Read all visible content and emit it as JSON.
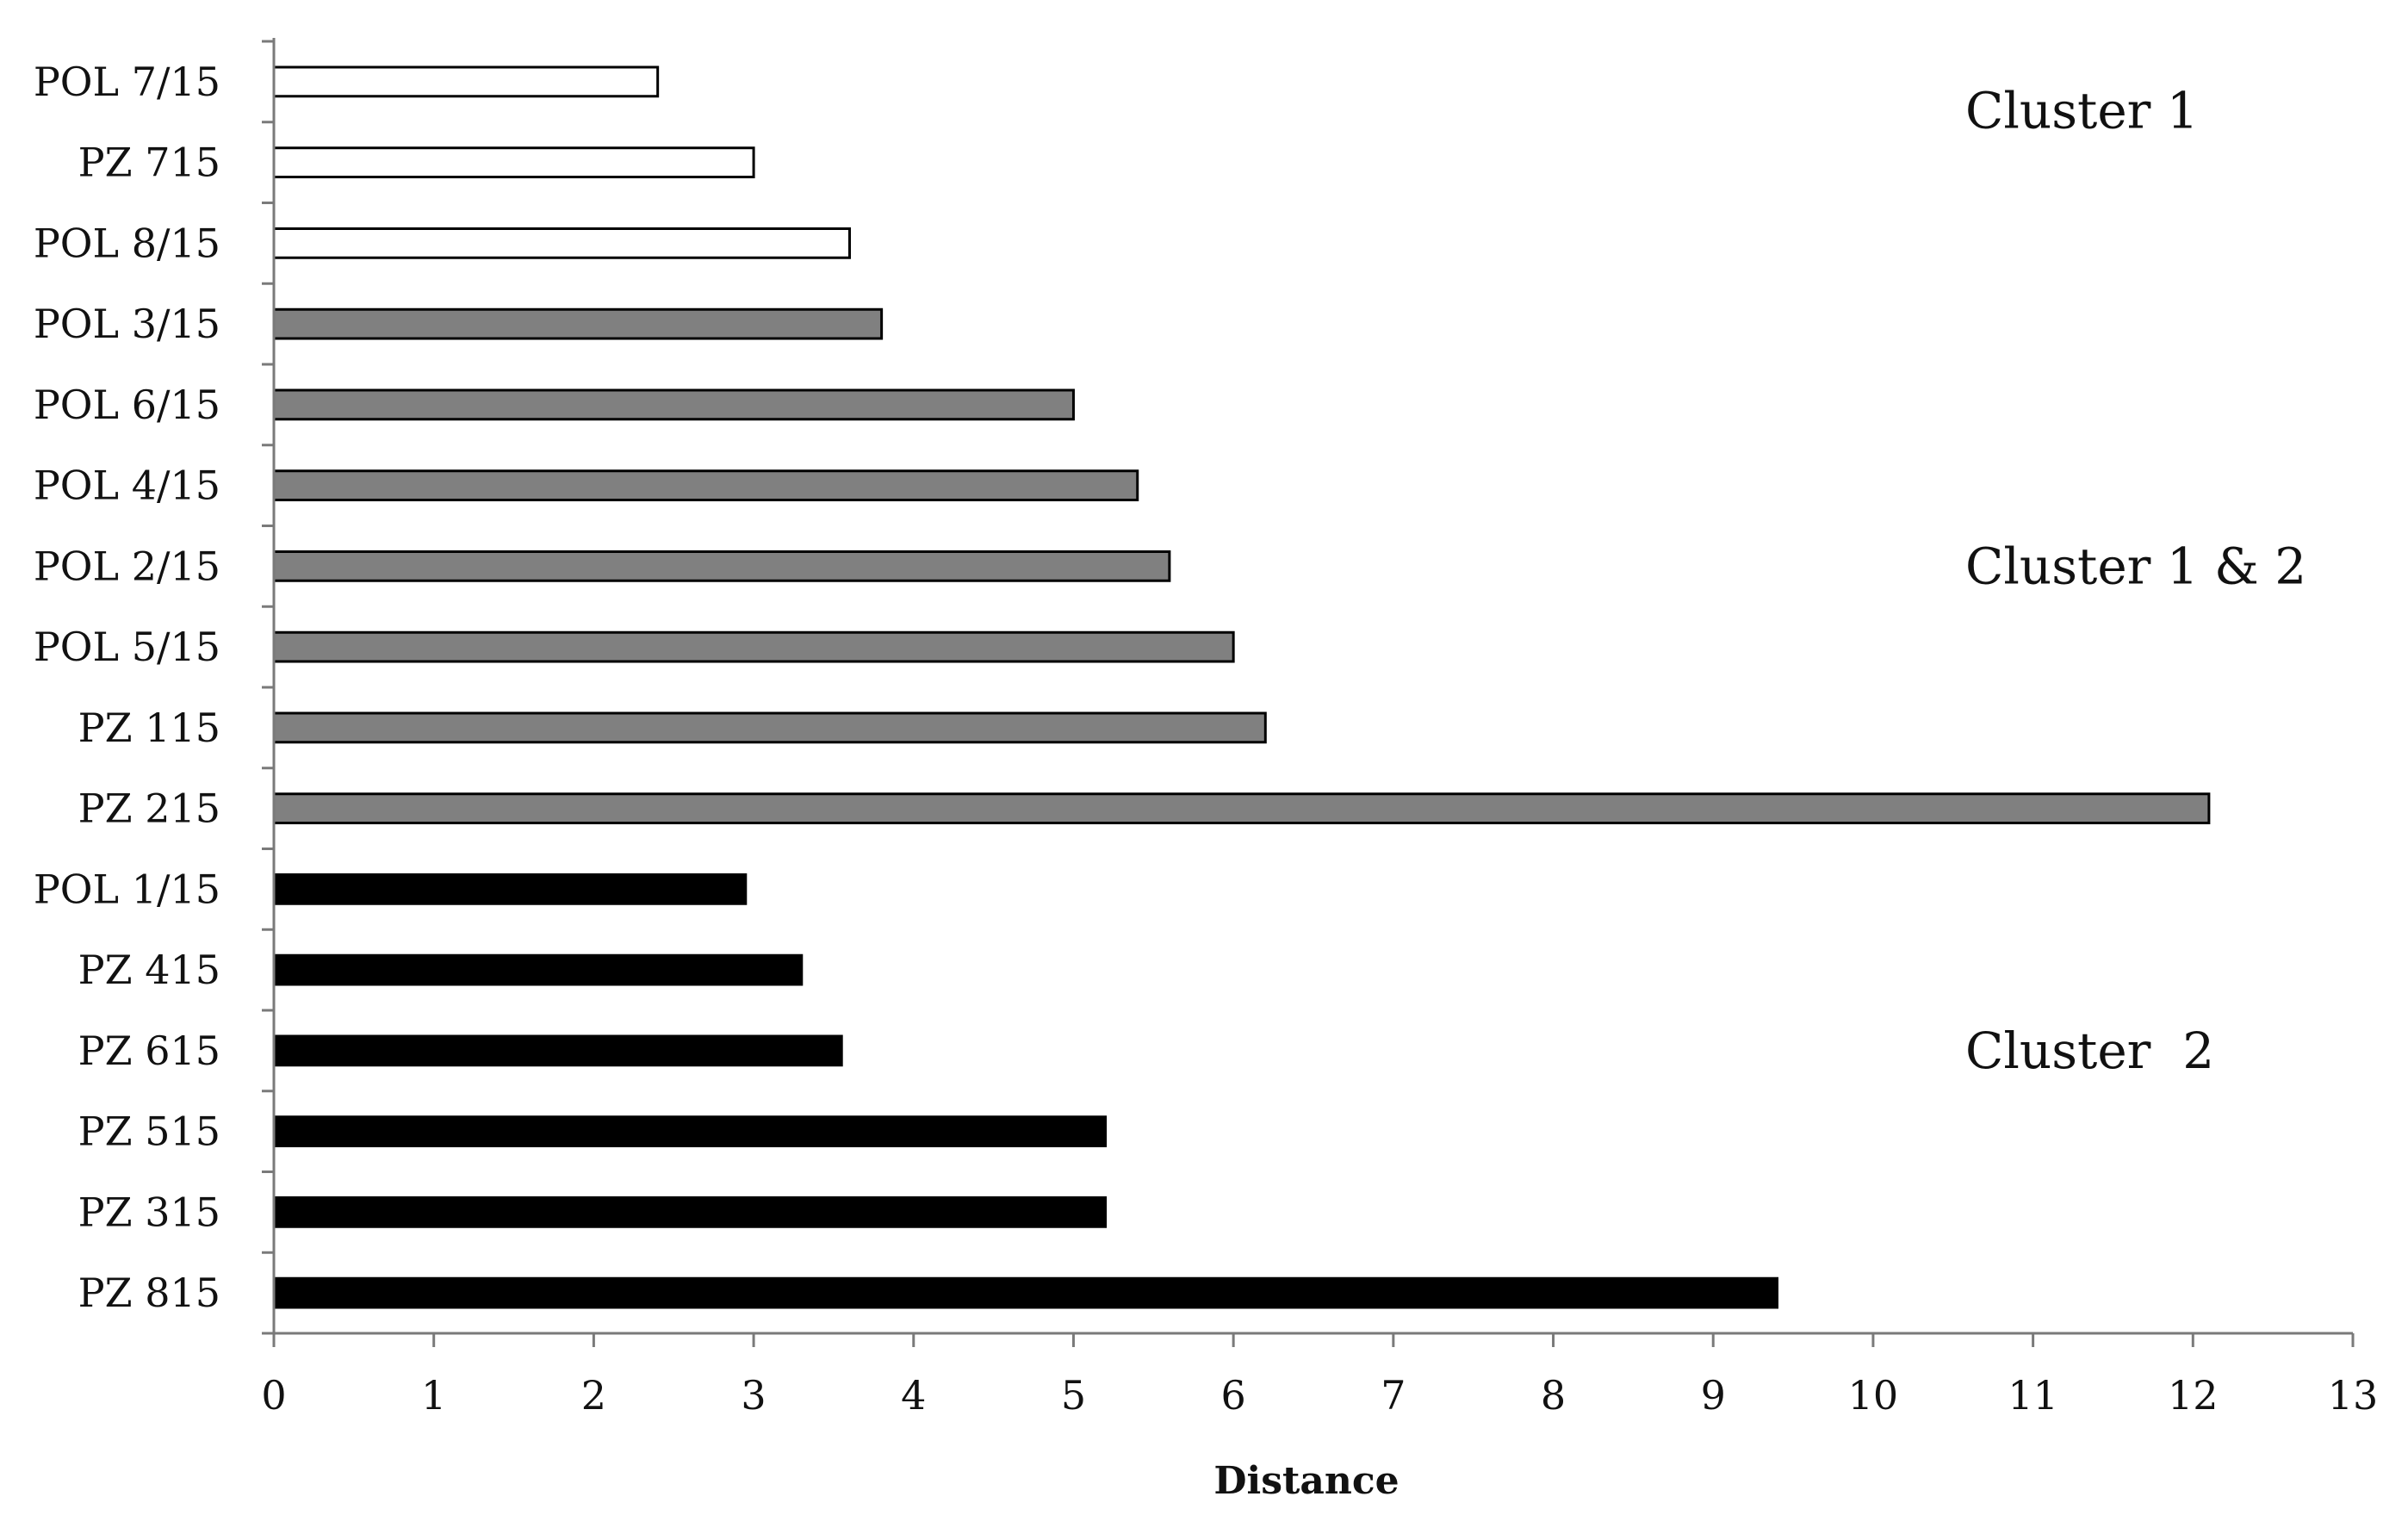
{
  "chart_data": {
    "type": "bar",
    "orientation": "horizontal",
    "title": "",
    "xlabel": "Distance",
    "ylabel": "",
    "xlim": [
      0,
      13
    ],
    "x_ticks": [
      0,
      1,
      2,
      3,
      4,
      5,
      6,
      7,
      8,
      9,
      10,
      11,
      12,
      13
    ],
    "grid": false,
    "legend": "none",
    "categories": [
      "POL 7/15",
      "PZ 715",
      "POL 8/15",
      "POL 3/15",
      "POL 6/15",
      "POL 4/15",
      "POL 2/15",
      "POL 5/15",
      "PZ 115",
      "PZ 215",
      "POL 1/15",
      "PZ 415",
      "PZ 615",
      "PZ 515",
      "PZ 315",
      "PZ 815"
    ],
    "values": [
      2.4,
      3.0,
      3.6,
      3.8,
      5.0,
      5.4,
      5.6,
      6.0,
      6.2,
      12.1,
      2.95,
      3.3,
      3.55,
      5.2,
      5.2,
      9.4
    ],
    "groups": [
      "cluster1",
      "cluster1",
      "cluster1",
      "cluster12",
      "cluster12",
      "cluster12",
      "cluster12",
      "cluster12",
      "cluster12",
      "cluster12",
      "cluster2",
      "cluster2",
      "cluster2",
      "cluster2",
      "cluster2",
      "cluster2"
    ],
    "group_colors": {
      "cluster1": "#ffffff",
      "cluster12": "#808080",
      "cluster2": "#000000"
    },
    "annotations": [
      {
        "text": "Cluster 1",
        "near_category": "PZ 715"
      },
      {
        "text": "Cluster 1 & 2",
        "near_category": "POL 2/15"
      },
      {
        "text": "Cluster  2",
        "near_category": "PZ 615"
      }
    ]
  }
}
